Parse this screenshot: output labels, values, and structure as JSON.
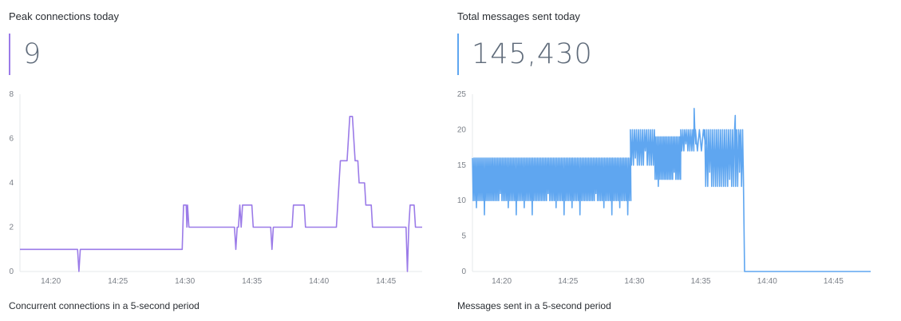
{
  "panels": [
    {
      "title": "Peak connections today",
      "stat_value": "9",
      "caption": "Concurrent connections in a 5-second period",
      "accent": "#9b7be8"
    },
    {
      "title": "Total messages sent today",
      "stat_value": "145,430",
      "caption": "Messages sent in a 5-second period",
      "accent": "#5fa6f0"
    }
  ],
  "chart_data": [
    {
      "type": "line",
      "color": "#9b7be8",
      "x_unit": "minutes",
      "xlim": [
        "14:17.7",
        "14:47.7"
      ],
      "x_tick_labels": [
        "14:20",
        "14:25",
        "14:30",
        "14:35",
        "14:40",
        "14:45"
      ],
      "x_tick_values": [
        20,
        25,
        30,
        35,
        40,
        45
      ],
      "ylim": [
        0,
        8
      ],
      "y_ticks": [
        0,
        2,
        4,
        6,
        8
      ],
      "series": [
        {
          "values": [
            [
              17.7,
              1
            ],
            [
              22.0,
              1
            ],
            [
              22.1,
              0
            ],
            [
              22.2,
              1
            ],
            [
              29.8,
              1
            ],
            [
              29.9,
              3
            ],
            [
              30.1,
              3
            ],
            [
              30.15,
              2
            ],
            [
              30.2,
              3
            ],
            [
              30.3,
              2
            ],
            [
              33.7,
              2
            ],
            [
              33.8,
              1
            ],
            [
              33.9,
              2
            ],
            [
              34.0,
              2
            ],
            [
              34.1,
              3
            ],
            [
              34.2,
              2
            ],
            [
              34.3,
              3
            ],
            [
              35.0,
              3
            ],
            [
              35.1,
              2
            ],
            [
              36.4,
              2
            ],
            [
              36.5,
              1
            ],
            [
              36.6,
              2
            ],
            [
              38.0,
              2
            ],
            [
              38.1,
              3
            ],
            [
              38.9,
              3
            ],
            [
              39.0,
              2
            ],
            [
              41.3,
              2
            ],
            [
              41.6,
              5
            ],
            [
              42.1,
              5
            ],
            [
              42.3,
              7
            ],
            [
              42.5,
              7
            ],
            [
              42.7,
              5
            ],
            [
              42.9,
              5
            ],
            [
              43.0,
              4
            ],
            [
              43.4,
              4
            ],
            [
              43.5,
              3
            ],
            [
              43.9,
              3
            ],
            [
              44.0,
              2
            ],
            [
              46.5,
              2
            ],
            [
              46.6,
              0
            ],
            [
              46.7,
              2
            ],
            [
              46.8,
              3
            ],
            [
              47.1,
              3
            ],
            [
              47.2,
              2
            ],
            [
              47.7,
              2
            ]
          ]
        }
      ]
    },
    {
      "type": "line",
      "color": "#5fa6f0",
      "x_unit": "minutes",
      "xlim": [
        "14:17.8",
        "14:47.8"
      ],
      "x_tick_labels": [
        "14:20",
        "14:25",
        "14:30",
        "14:35",
        "14:40",
        "14:45"
      ],
      "x_tick_values": [
        20,
        25,
        30,
        35,
        40,
        45
      ],
      "ylim": [
        0,
        25
      ],
      "y_ticks": [
        0,
        5,
        10,
        15,
        20,
        25
      ],
      "series": [
        {
          "segments": [
            {
              "x_start": 17.8,
              "x_end": 29.7,
              "low": 10,
              "high": 16,
              "step": 0.12,
              "dips": [
                9,
                8,
                10,
                11,
                9,
                8
              ]
            },
            {
              "x_start": 29.7,
              "x_end": 31.5,
              "low": 15,
              "high": 20,
              "step": 0.15,
              "dips": [
                16,
                17
              ]
            },
            {
              "x_start": 31.5,
              "x_end": 33.5,
              "low": 13,
              "high": 19,
              "step": 0.12,
              "dips": [
                12,
                13,
                14
              ]
            },
            {
              "x_start": 33.5,
              "x_end": 34.6,
              "low": 17,
              "high": 20,
              "step": 0.15,
              "dips": [
                18
              ]
            },
            {
              "x_start": 34.6,
              "x_end": 35.3,
              "low": 17,
              "high": 20,
              "step": 0.3,
              "dips": [
                18
              ]
            },
            {
              "x_start": 35.3,
              "x_end": 38.2,
              "low": 12,
              "high": 20,
              "step": 0.15,
              "dips": [
                14,
                12,
                13
              ]
            }
          ],
          "spikes": [
            [
              34.5,
              23
            ],
            [
              37.6,
              22
            ],
            [
              37.9,
              19
            ]
          ],
          "tail": [
            [
              38.2,
              15
            ],
            [
              38.3,
              0
            ],
            [
              47.8,
              0
            ]
          ]
        }
      ]
    }
  ]
}
